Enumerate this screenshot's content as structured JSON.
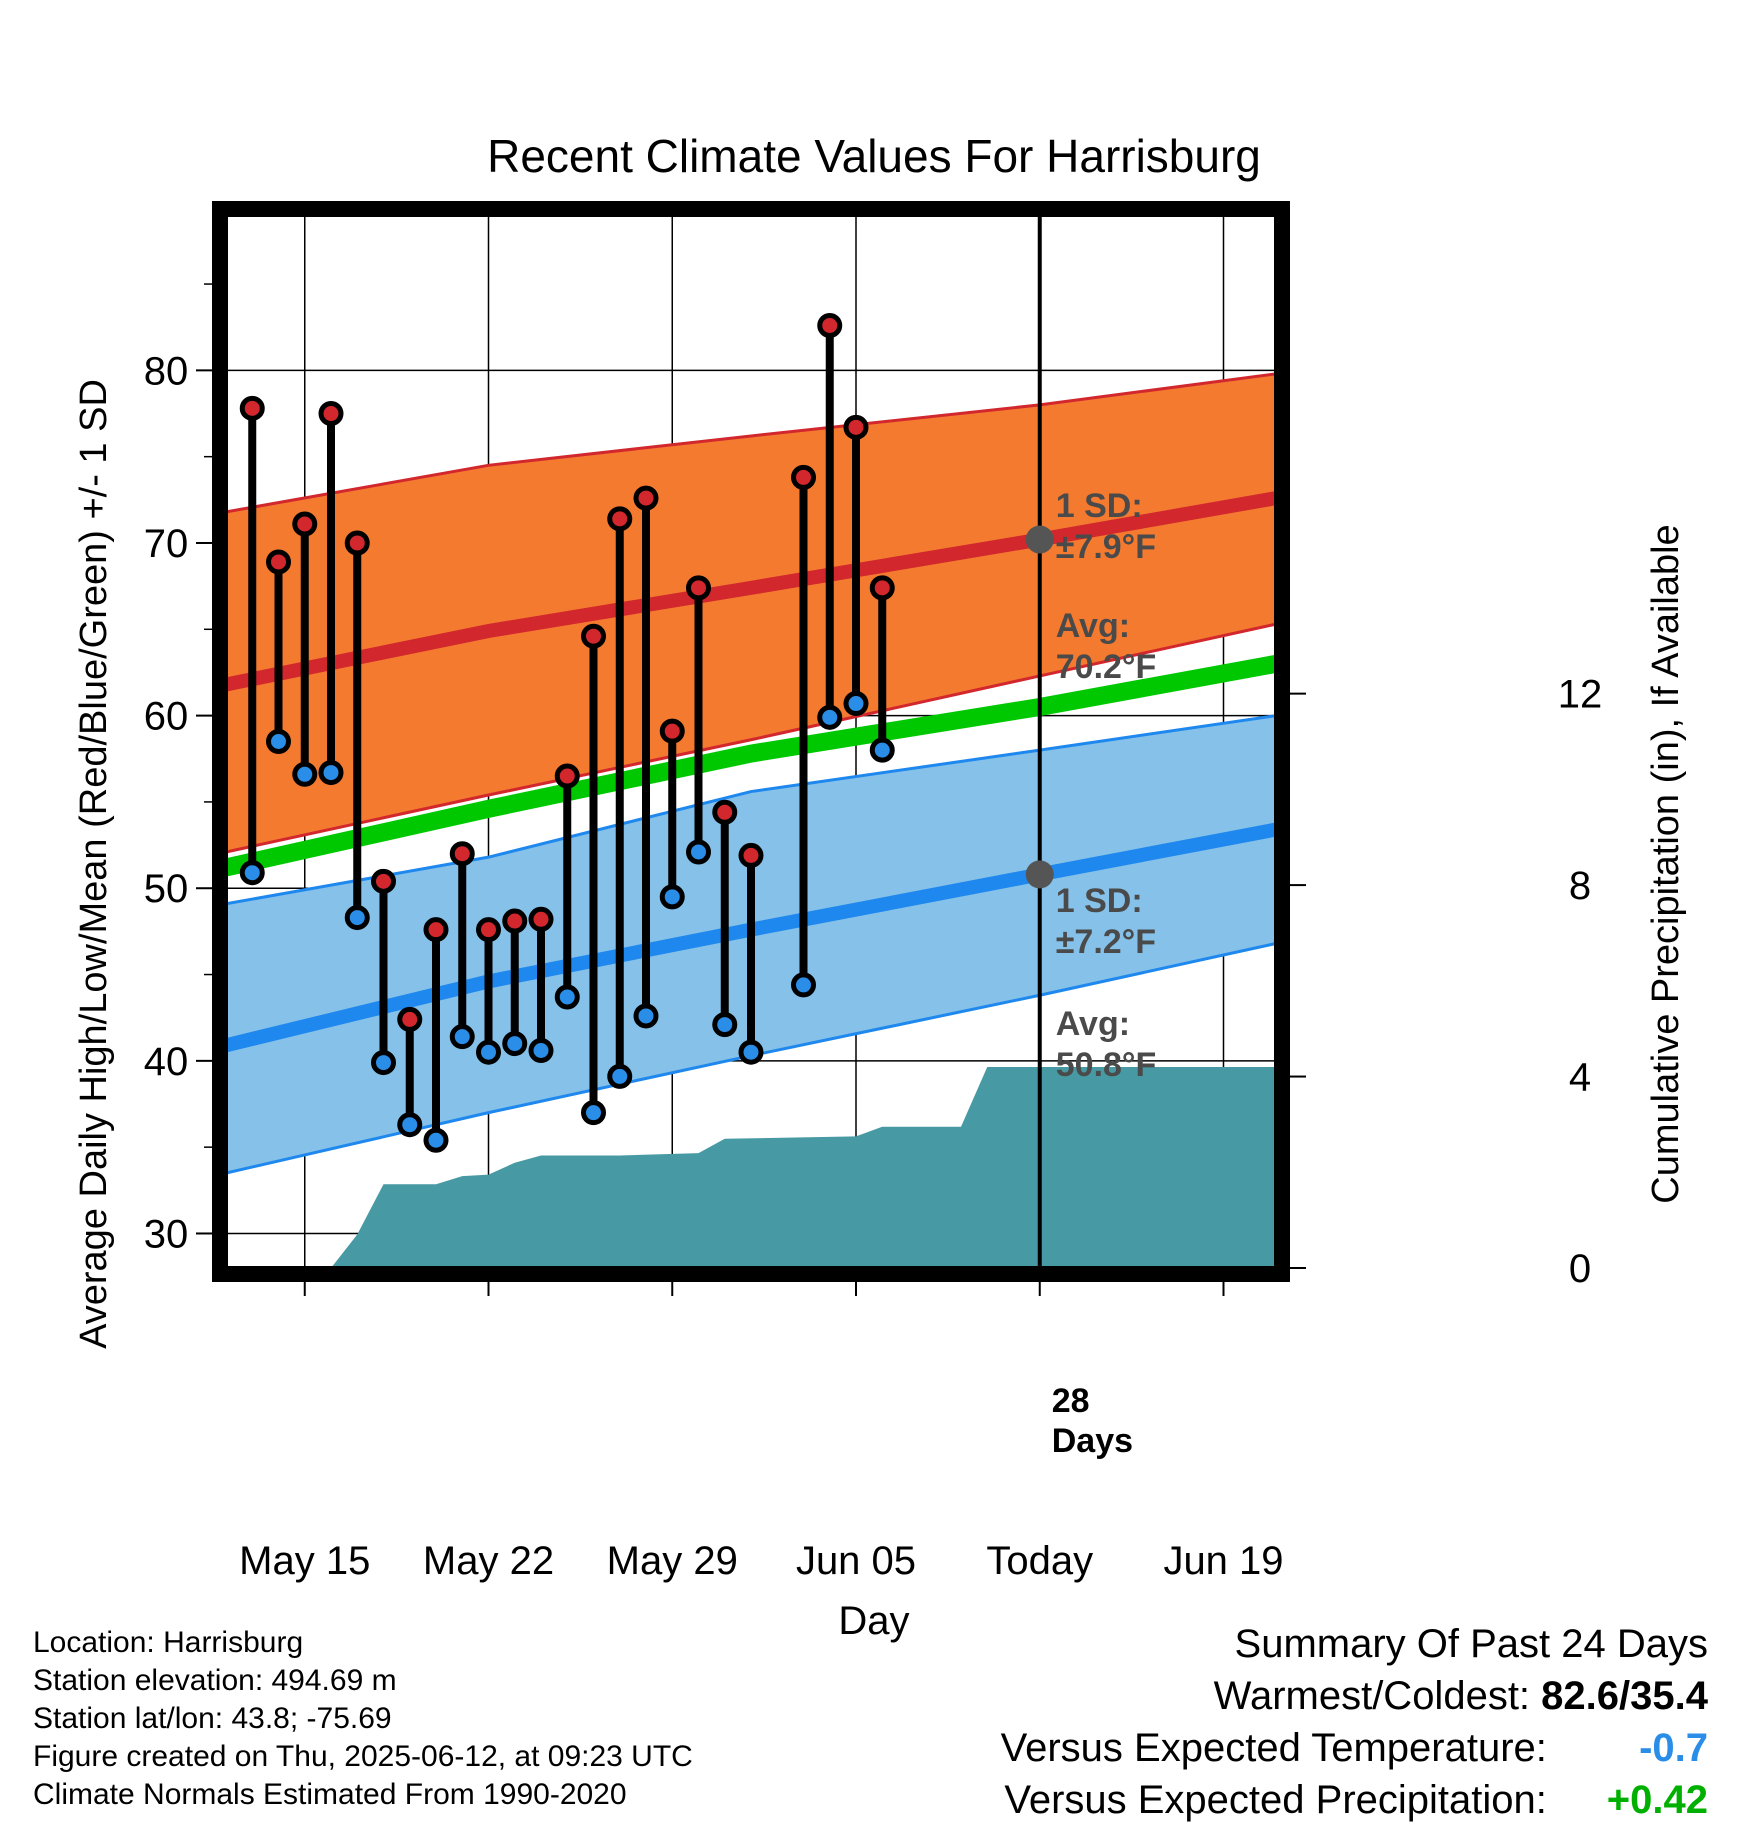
{
  "chart_data": {
    "type": "line",
    "title": "Recent Climate Values For Harrisburg",
    "xlabel": "Day",
    "ylabel": "Average Daily High/Low/Mean (Red/Blue/Green) +/- 1 SD",
    "y2label": "Cumulative Precipitation (in), If Available",
    "x_ticks": [
      "May 15",
      "May 22",
      "May 29",
      "Jun 05",
      "Today",
      "Jun 19"
    ],
    "y_ticks": [
      "30",
      "40",
      "50",
      "60",
      "70",
      "80"
    ],
    "y2_ticks": [
      "0",
      "4",
      "8",
      "12"
    ],
    "ylim": [
      28,
      89
    ],
    "y2lim": [
      0,
      22
    ],
    "x_range": [
      "2025-05-12",
      "2025-06-21"
    ],
    "today": "2025-06-12",
    "grid": true,
    "observations": [
      {
        "date": "2025-05-13",
        "high": 77.8,
        "low": 50.9
      },
      {
        "date": "2025-05-14",
        "high": 68.9,
        "low": 58.5
      },
      {
        "date": "2025-05-15",
        "high": 71.1,
        "low": 56.6
      },
      {
        "date": "2025-05-16",
        "high": 77.5,
        "low": 56.7
      },
      {
        "date": "2025-05-17",
        "high": 70.0,
        "low": 48.3
      },
      {
        "date": "2025-05-18",
        "high": 50.4,
        "low": 39.9
      },
      {
        "date": "2025-05-19",
        "high": 42.4,
        "low": 36.3
      },
      {
        "date": "2025-05-20",
        "high": 47.6,
        "low": 35.4
      },
      {
        "date": "2025-05-21",
        "high": 52.0,
        "low": 41.4
      },
      {
        "date": "2025-05-22",
        "high": 47.6,
        "low": 40.5
      },
      {
        "date": "2025-05-23",
        "high": 48.1,
        "low": 41.0
      },
      {
        "date": "2025-05-24",
        "high": 48.2,
        "low": 40.6
      },
      {
        "date": "2025-05-25",
        "high": 56.5,
        "low": 43.7
      },
      {
        "date": "2025-05-26",
        "high": 64.6,
        "low": 37.0
      },
      {
        "date": "2025-05-27",
        "high": 71.4,
        "low": 39.1
      },
      {
        "date": "2025-05-28",
        "high": 72.6,
        "low": 42.6
      },
      {
        "date": "2025-05-29",
        "high": 59.1,
        "low": 49.5
      },
      {
        "date": "2025-05-30",
        "high": 67.4,
        "low": 52.1
      },
      {
        "date": "2025-05-31",
        "high": 54.4,
        "low": 42.1
      },
      {
        "date": "2025-06-01",
        "high": 51.9,
        "low": 40.5
      },
      {
        "date": "2025-06-03",
        "high": 73.8,
        "low": 44.4
      },
      {
        "date": "2025-06-04",
        "high": 82.6,
        "low": 59.9
      },
      {
        "date": "2025-06-05",
        "high": 76.7,
        "low": 60.7
      },
      {
        "date": "2025-06-06",
        "high": 67.4,
        "low": 58.0
      }
    ],
    "normals": {
      "dates": [
        "2025-05-12",
        "2025-05-22",
        "2025-06-01",
        "2025-06-12",
        "2025-06-21"
      ],
      "high_avg": [
        61.8,
        64.9,
        67.4,
        70.2,
        72.6
      ],
      "high_upper": [
        71.8,
        74.5,
        76.2,
        78.0,
        79.8
      ],
      "high_lower": [
        52.1,
        55.4,
        58.6,
        62.3,
        65.3
      ],
      "mean": [
        51.2,
        54.6,
        57.8,
        60.5,
        63.0
      ],
      "low_avg": [
        40.9,
        44.6,
        47.6,
        50.8,
        53.4
      ],
      "low_upper": [
        49.1,
        51.8,
        55.6,
        58.0,
        60.0
      ],
      "low_lower": [
        33.5,
        37.0,
        40.3,
        43.8,
        46.8
      ]
    },
    "precipitation": {
      "dates": [
        "2025-05-16",
        "2025-05-17",
        "2025-05-18",
        "2025-05-19",
        "2025-05-20",
        "2025-05-21",
        "2025-05-22",
        "2025-05-23",
        "2025-05-24",
        "2025-05-27",
        "2025-05-30",
        "2025-05-31",
        "2025-06-05",
        "2025-06-06",
        "2025-06-09",
        "2025-06-10",
        "2025-06-21"
      ],
      "cumulative": [
        0.0,
        0.7,
        1.75,
        1.75,
        1.75,
        1.92,
        1.95,
        2.2,
        2.35,
        2.35,
        2.4,
        2.7,
        2.75,
        2.95,
        2.95,
        4.2,
        4.2
      ]
    },
    "annotations": {
      "high_sd_label": "1 SD:",
      "high_sd_value": "±7.9°F",
      "high_avg_label": "Avg:",
      "high_avg_value": "70.2°F",
      "low_sd_label": "1 SD:",
      "low_sd_value": "±7.2°F",
      "low_avg_label": "Avg:",
      "low_avg_value": "50.8°F",
      "days_count": "28",
      "days_word": "Days"
    },
    "colors": {
      "high_band": "#f47a30",
      "high_line": "#d1272d",
      "low_band": "#85c1e8",
      "low_line": "#1e88ee",
      "mean_line": "#00c800",
      "precip": "#4799a3",
      "high_marker": "#d1272d",
      "low_marker": "#2a8de8",
      "annotation_text": "#4a4a4a"
    }
  },
  "info": {
    "location": "Location: Harrisburg",
    "elevation": "Station elevation: 494.69 m",
    "latlon": "Station lat/lon: 43.8; -75.69",
    "created": "Figure created on Thu, 2025-06-12, at 09:23 UTC",
    "normals": "Climate Normals Estimated From 1990-2020"
  },
  "summary": {
    "heading": "Summary Of Past 24 Days",
    "warmest_label": "Warmest/Coldest:",
    "warmest_value": "82.6/35.4",
    "temp_label": "Versus Expected Temperature:",
    "temp_value": "-0.7",
    "temp_color": "#2a8de8",
    "precip_label": "Versus Expected Precipitation:",
    "precip_value": "+0.42",
    "precip_color": "#00b000"
  }
}
